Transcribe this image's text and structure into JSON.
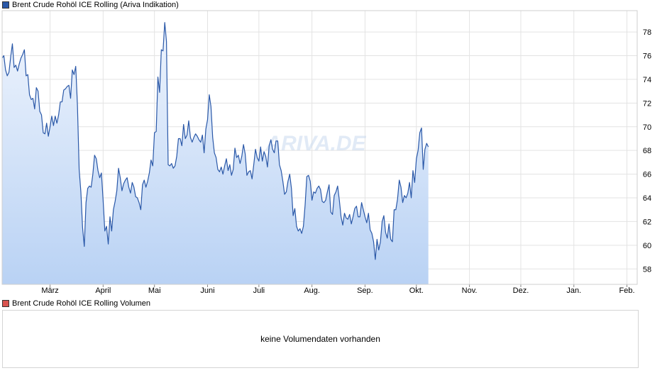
{
  "legend": {
    "price_label": "Brent Crude Rohöl ICE Rolling (Ariva Indikation)",
    "price_color": "#2a58a8",
    "volume_label": "Brent Crude Rohöl ICE Rolling Volumen",
    "volume_color": "#d9534f"
  },
  "volume": {
    "message": "keine Volumendaten vorhanden"
  },
  "watermark": "ARIVA.DE",
  "chart_data": {
    "type": "area",
    "title": "Brent Crude Rohöl ICE Rolling (Ariva Indikation)",
    "xlabel": "",
    "ylabel": "",
    "ylim": [
      56.7,
      79.8
    ],
    "yticks": [
      58,
      60,
      62,
      64,
      66,
      68,
      70,
      72,
      74,
      76,
      78
    ],
    "grid": true,
    "line_color": "#2a58a8",
    "fill_top_color": "#eef4fd",
    "fill_bottom_color": "#b9d2f4",
    "months": [
      {
        "label": "März",
        "x": 42
      },
      {
        "label": "April",
        "x": 73
      },
      {
        "label": "Mai",
        "x": 103
      },
      {
        "label": "Juni",
        "x": 134
      },
      {
        "label": "Juli",
        "x": 164
      },
      {
        "label": "Aug.",
        "x": 195
      },
      {
        "label": "Sep.",
        "x": 226
      },
      {
        "label": "Okt.",
        "x": 256
      },
      {
        "label": "Nov.",
        "x": 287
      },
      {
        "label": "Dez.",
        "x": 317
      },
      {
        "label": "Jan.",
        "x": 348
      },
      {
        "label": "Feb.",
        "x": 379
      }
    ],
    "x_range": [
      14,
      385
    ],
    "series": [
      {
        "values": [
          [
            14,
            75.8
          ],
          [
            15,
            76
          ],
          [
            16,
            74.8
          ],
          [
            17,
            74.3
          ],
          [
            18,
            74.6
          ],
          [
            19,
            75.9
          ],
          [
            20,
            77
          ],
          [
            21,
            75
          ],
          [
            22,
            75.2
          ],
          [
            23,
            74.7
          ],
          [
            24,
            75.3
          ],
          [
            25,
            75.8
          ],
          [
            26,
            76.1
          ],
          [
            27,
            76.5
          ],
          [
            28,
            74.3
          ],
          [
            29,
            74.4
          ],
          [
            30,
            72.7
          ],
          [
            31,
            72.3
          ],
          [
            32,
            72.4
          ],
          [
            33,
            71.5
          ],
          [
            34,
            73.3
          ],
          [
            35,
            73
          ],
          [
            36,
            71.3
          ],
          [
            37,
            71
          ],
          [
            38,
            69.5
          ],
          [
            39,
            69.4
          ],
          [
            40,
            70.3
          ],
          [
            41,
            69.2
          ],
          [
            42,
            70
          ],
          [
            43,
            70.9
          ],
          [
            44,
            70.1
          ],
          [
            45,
            70.9
          ],
          [
            46,
            70.3
          ],
          [
            47,
            71
          ],
          [
            48,
            72.1
          ],
          [
            49,
            72.1
          ],
          [
            50,
            73.1
          ],
          [
            51,
            73.2
          ],
          [
            52,
            73.4
          ],
          [
            53,
            73.5
          ],
          [
            54,
            72.4
          ],
          [
            55,
            74.8
          ],
          [
            56,
            74.4
          ],
          [
            57,
            75.1
          ],
          [
            58,
            71.8
          ],
          [
            59,
            66.4
          ],
          [
            60,
            64.5
          ],
          [
            61,
            61.5
          ],
          [
            62,
            59.9
          ],
          [
            63,
            63.6
          ],
          [
            64,
            64.8
          ],
          [
            65,
            65
          ],
          [
            66,
            64.9
          ],
          [
            67,
            66
          ],
          [
            68,
            67.6
          ],
          [
            69,
            67.3
          ],
          [
            70,
            66.3
          ],
          [
            71,
            65.7
          ],
          [
            72,
            66.1
          ],
          [
            73,
            63.8
          ],
          [
            74,
            61.2
          ],
          [
            75,
            61.6
          ],
          [
            76,
            60.1
          ],
          [
            77,
            62.4
          ],
          [
            78,
            61.2
          ],
          [
            79,
            63
          ],
          [
            80,
            63.7
          ],
          [
            81,
            64.6
          ],
          [
            82,
            66.5
          ],
          [
            83,
            65.7
          ],
          [
            84,
            64.6
          ],
          [
            85,
            65.2
          ],
          [
            86,
            65.5
          ],
          [
            87,
            65.7
          ],
          [
            88,
            64.9
          ],
          [
            89,
            64.4
          ],
          [
            90,
            65.3
          ],
          [
            91,
            64.9
          ],
          [
            92,
            64.1
          ],
          [
            93,
            64
          ],
          [
            94,
            63.6
          ],
          [
            95,
            63
          ],
          [
            96,
            65.1
          ],
          [
            97,
            65.5
          ],
          [
            98,
            64.9
          ],
          [
            99,
            65.4
          ],
          [
            100,
            66.1
          ],
          [
            101,
            67.2
          ],
          [
            102,
            66.7
          ],
          [
            103,
            69.5
          ],
          [
            104,
            69.6
          ],
          [
            105,
            74.2
          ],
          [
            106,
            72.9
          ],
          [
            107,
            76.5
          ],
          [
            108,
            76.4
          ],
          [
            109,
            78.8
          ],
          [
            110,
            77.2
          ],
          [
            111,
            66.8
          ],
          [
            112,
            66.7
          ],
          [
            113,
            66.9
          ],
          [
            114,
            66.5
          ],
          [
            115,
            66.7
          ],
          [
            116,
            67.5
          ],
          [
            117,
            69
          ],
          [
            118,
            69
          ],
          [
            119,
            68.4
          ],
          [
            120,
            70.2
          ],
          [
            121,
            69
          ],
          [
            122,
            69.3
          ],
          [
            123,
            70.5
          ],
          [
            124,
            69.1
          ],
          [
            125,
            68.7
          ],
          [
            126,
            69.1
          ],
          [
            127,
            69.4
          ],
          [
            128,
            69.2
          ],
          [
            129,
            68.9
          ],
          [
            130,
            68.7
          ],
          [
            131,
            69.3
          ],
          [
            132,
            67.8
          ],
          [
            133,
            69.8
          ],
          [
            134,
            70.6
          ],
          [
            135,
            72.7
          ],
          [
            136,
            71.7
          ],
          [
            137,
            69.1
          ],
          [
            138,
            67.8
          ],
          [
            139,
            67.4
          ],
          [
            140,
            66.4
          ],
          [
            141,
            66.2
          ],
          [
            142,
            66.6
          ],
          [
            143,
            66
          ],
          [
            144,
            66.7
          ],
          [
            145,
            67.3
          ],
          [
            146,
            66.3
          ],
          [
            147,
            66.8
          ],
          [
            148,
            65.9
          ],
          [
            149,
            66.4
          ],
          [
            150,
            68.2
          ],
          [
            151,
            67.4
          ],
          [
            152,
            67.6
          ],
          [
            153,
            66.9
          ],
          [
            154,
            67.5
          ],
          [
            155,
            68.5
          ],
          [
            156,
            67.7
          ],
          [
            157,
            65.9
          ],
          [
            158,
            66.2
          ],
          [
            159,
            66.3
          ],
          [
            160,
            65.6
          ],
          [
            161,
            66.8
          ],
          [
            162,
            68.1
          ],
          [
            163,
            67.4
          ],
          [
            164,
            67.1
          ],
          [
            165,
            68.3
          ],
          [
            166,
            67.1
          ],
          [
            167,
            67.9
          ],
          [
            168,
            67.5
          ],
          [
            169,
            66.6
          ],
          [
            170,
            68.4
          ],
          [
            171,
            68.9
          ],
          [
            172,
            68.1
          ],
          [
            173,
            67.8
          ],
          [
            174,
            68.8
          ],
          [
            175,
            68.8
          ],
          [
            176,
            66.8
          ],
          [
            177,
            66.3
          ],
          [
            178,
            65.4
          ],
          [
            179,
            64.3
          ],
          [
            180,
            64.5
          ],
          [
            181,
            65.4
          ],
          [
            182,
            66
          ],
          [
            183,
            64.8
          ],
          [
            184,
            62.5
          ],
          [
            185,
            63.1
          ],
          [
            186,
            61.6
          ],
          [
            187,
            61.2
          ],
          [
            188,
            61.4
          ],
          [
            189,
            61
          ],
          [
            190,
            61.6
          ],
          [
            191,
            63.4
          ],
          [
            192,
            65.8
          ],
          [
            193,
            65.9
          ],
          [
            194,
            65.4
          ],
          [
            195,
            63.8
          ],
          [
            196,
            64.5
          ],
          [
            197,
            64.4
          ],
          [
            198,
            64.8
          ],
          [
            199,
            65
          ],
          [
            200,
            64.7
          ],
          [
            201,
            63.7
          ],
          [
            202,
            63.6
          ],
          [
            203,
            63.8
          ],
          [
            204,
            64.5
          ],
          [
            205,
            65.1
          ],
          [
            206,
            62.8
          ],
          [
            207,
            62.6
          ],
          [
            208,
            64.2
          ],
          [
            209,
            64.5
          ],
          [
            210,
            65
          ],
          [
            211,
            63.8
          ],
          [
            212,
            62.4
          ],
          [
            213,
            61.7
          ],
          [
            214,
            62.7
          ],
          [
            215,
            62.3
          ],
          [
            216,
            62.2
          ],
          [
            217,
            62.6
          ],
          [
            218,
            61.8
          ],
          [
            219,
            62.4
          ],
          [
            220,
            63.1
          ],
          [
            221,
            63.3
          ],
          [
            222,
            62.4
          ],
          [
            223,
            62.4
          ],
          [
            224,
            63.6
          ],
          [
            225,
            63
          ],
          [
            226,
            62.4
          ],
          [
            227,
            61.9
          ],
          [
            228,
            62.7
          ],
          [
            229,
            61.3
          ],
          [
            230,
            61
          ],
          [
            231,
            60.3
          ],
          [
            232,
            58.8
          ],
          [
            233,
            60.5
          ],
          [
            234,
            59.6
          ],
          [
            235,
            60.3
          ],
          [
            236,
            62
          ],
          [
            237,
            62.5
          ],
          [
            238,
            61.1
          ],
          [
            239,
            60.6
          ],
          [
            240,
            61.8
          ],
          [
            241,
            60.5
          ],
          [
            242,
            60.3
          ],
          [
            243,
            63
          ],
          [
            244,
            63
          ],
          [
            245,
            63.9
          ],
          [
            246,
            65.5
          ],
          [
            247,
            64.9
          ],
          [
            248,
            63.6
          ],
          [
            249,
            64.2
          ],
          [
            250,
            64
          ],
          [
            251,
            64.4
          ],
          [
            252,
            65.3
          ],
          [
            253,
            64
          ],
          [
            254,
            66.3
          ],
          [
            255,
            65.3
          ],
          [
            256,
            67.3
          ],
          [
            257,
            68
          ],
          [
            258,
            69.5
          ],
          [
            259,
            69.9
          ],
          [
            260,
            66.4
          ],
          [
            261,
            68.1
          ],
          [
            262,
            68.6
          ],
          [
            263,
            68.3
          ]
        ]
      }
    ]
  }
}
